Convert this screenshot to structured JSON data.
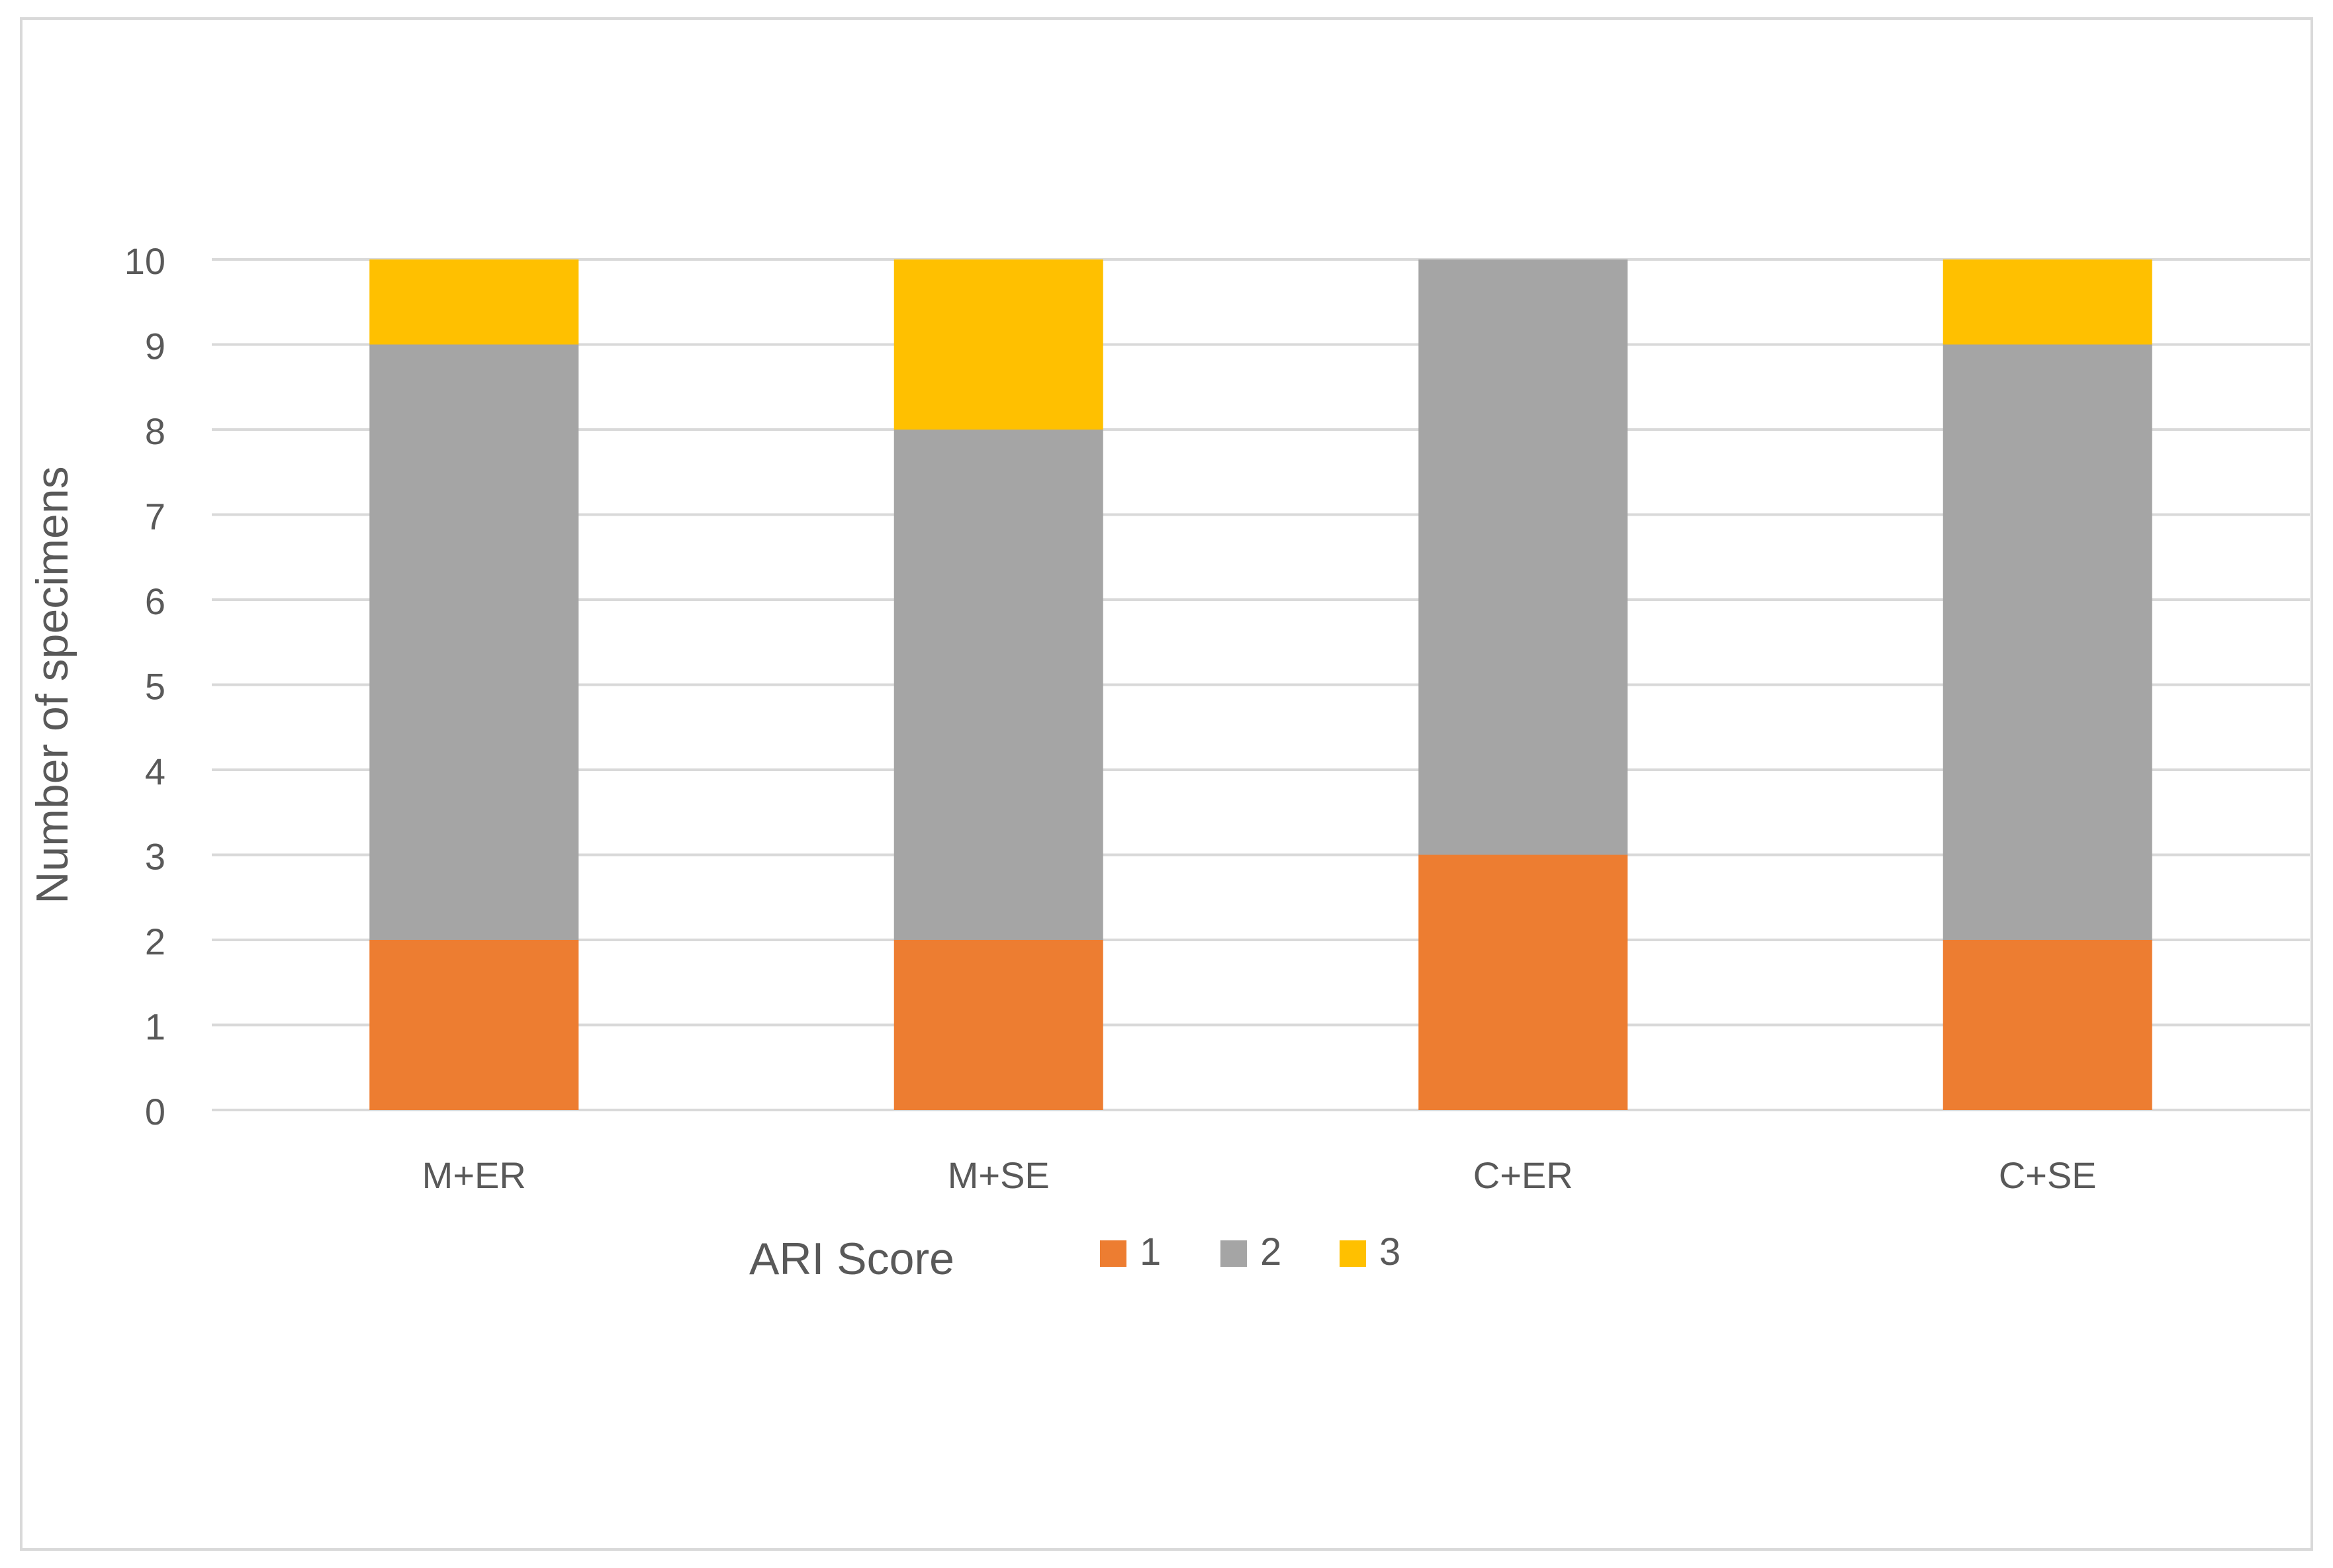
{
  "chart_data": {
    "type": "bar",
    "stacked": true,
    "categories": [
      "M+ER",
      "M+SE",
      "C+ER",
      "C+SE"
    ],
    "series": [
      {
        "name": "1",
        "values": [
          2,
          2,
          3,
          2
        ],
        "color": "#ED7D31"
      },
      {
        "name": "2",
        "values": [
          7,
          6,
          7,
          7
        ],
        "color": "#A5A5A5"
      },
      {
        "name": "3",
        "values": [
          1,
          2,
          0,
          1
        ],
        "color": "#FFC000"
      }
    ],
    "ylabel": "Number of specimens",
    "legend_title": "ARI Score",
    "ylim": [
      0,
      10
    ],
    "yticks": [
      "0",
      "1",
      "2",
      "3",
      "4",
      "5",
      "6",
      "7",
      "8",
      "9",
      "10"
    ],
    "grid": true,
    "legend_position": "bottom",
    "colors": {
      "gridline": "#D9D9D9",
      "axis_text": "#595959",
      "frame": "#D9D9D9"
    }
  }
}
